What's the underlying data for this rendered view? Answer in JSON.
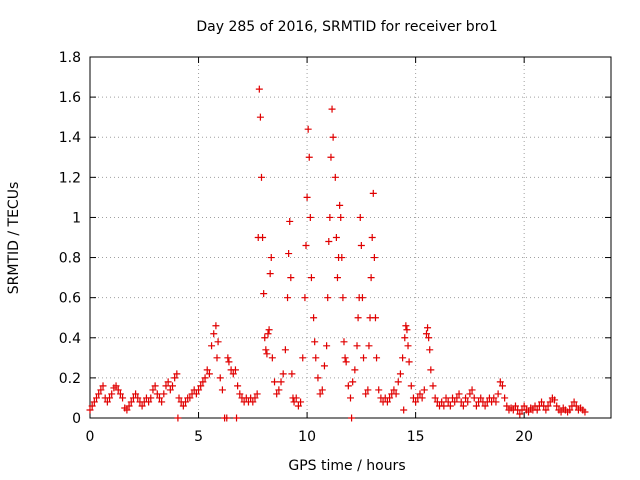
{
  "chart_data": {
    "type": "scatter",
    "title": "Day 285 of 2016, SRMTID for receiver bro1",
    "xlabel": "GPS time / hours",
    "ylabel": "SRMTID / TECUs",
    "xlim": [
      0,
      24
    ],
    "ylim": [
      0,
      1.8
    ],
    "xticks": [
      0,
      5,
      10,
      15,
      20
    ],
    "yticks": [
      0,
      0.2,
      0.4,
      0.6,
      0.8,
      1,
      1.2,
      1.4,
      1.6,
      1.8
    ],
    "xtick_labels": [
      "0",
      "5",
      "10",
      "15",
      "20"
    ],
    "ytick_labels": [
      "0",
      "0.2",
      "0.4",
      "0.6",
      "0.8",
      "1",
      "1.2",
      "1.4",
      "1.6",
      "1.8"
    ],
    "grid": true,
    "marker": "plus",
    "series_color": "#e00000",
    "points": [
      [
        0.0,
        0.04
      ],
      [
        0.1,
        0.06
      ],
      [
        0.2,
        0.08
      ],
      [
        0.3,
        0.1
      ],
      [
        0.4,
        0.12
      ],
      [
        0.5,
        0.14
      ],
      [
        0.6,
        0.16
      ],
      [
        0.7,
        0.1
      ],
      [
        0.8,
        0.08
      ],
      [
        0.9,
        0.1
      ],
      [
        1.0,
        0.12
      ],
      [
        1.1,
        0.15
      ],
      [
        1.2,
        0.16
      ],
      [
        1.3,
        0.14
      ],
      [
        1.4,
        0.12
      ],
      [
        1.5,
        0.1
      ],
      [
        1.6,
        0.05
      ],
      [
        1.7,
        0.04
      ],
      [
        1.8,
        0.06
      ],
      [
        1.9,
        0.08
      ],
      [
        2.0,
        0.1
      ],
      [
        2.1,
        0.12
      ],
      [
        2.2,
        0.1
      ],
      [
        2.3,
        0.08
      ],
      [
        2.4,
        0.06
      ],
      [
        2.5,
        0.08
      ],
      [
        2.6,
        0.1
      ],
      [
        2.7,
        0.08
      ],
      [
        2.8,
        0.1
      ],
      [
        2.9,
        0.14
      ],
      [
        3.0,
        0.16
      ],
      [
        3.1,
        0.12
      ],
      [
        3.2,
        0.1
      ],
      [
        3.3,
        0.08
      ],
      [
        3.4,
        0.12
      ],
      [
        3.5,
        0.16
      ],
      [
        3.6,
        0.18
      ],
      [
        3.7,
        0.14
      ],
      [
        3.8,
        0.16
      ],
      [
        3.9,
        0.2
      ],
      [
        4.0,
        0.22
      ],
      [
        4.05,
        0.0
      ],
      [
        4.1,
        0.1
      ],
      [
        4.2,
        0.08
      ],
      [
        4.3,
        0.06
      ],
      [
        4.4,
        0.08
      ],
      [
        4.5,
        0.1
      ],
      [
        4.6,
        0.1
      ],
      [
        4.7,
        0.12
      ],
      [
        4.8,
        0.14
      ],
      [
        4.9,
        0.12
      ],
      [
        5.0,
        0.14
      ],
      [
        5.1,
        0.16
      ],
      [
        5.2,
        0.18
      ],
      [
        5.3,
        0.2
      ],
      [
        5.4,
        0.24
      ],
      [
        5.5,
        0.22
      ],
      [
        5.6,
        0.36
      ],
      [
        5.7,
        0.42
      ],
      [
        5.8,
        0.46
      ],
      [
        5.85,
        0.3
      ],
      [
        5.9,
        0.38
      ],
      [
        6.0,
        0.2
      ],
      [
        6.1,
        0.14
      ],
      [
        6.2,
        0.0
      ],
      [
        6.3,
        0.0
      ],
      [
        6.35,
        0.3
      ],
      [
        6.4,
        0.28
      ],
      [
        6.5,
        0.24
      ],
      [
        6.6,
        0.22
      ],
      [
        6.7,
        0.24
      ],
      [
        6.75,
        0.0
      ],
      [
        6.8,
        0.16
      ],
      [
        6.9,
        0.12
      ],
      [
        7.0,
        0.1
      ],
      [
        7.1,
        0.08
      ],
      [
        7.2,
        0.1
      ],
      [
        7.3,
        0.08
      ],
      [
        7.4,
        0.1
      ],
      [
        7.5,
        0.08
      ],
      [
        7.6,
        0.1
      ],
      [
        7.7,
        0.12
      ],
      [
        7.75,
        0.9
      ],
      [
        7.8,
        1.64
      ],
      [
        7.85,
        1.5
      ],
      [
        7.9,
        1.2
      ],
      [
        7.95,
        0.9
      ],
      [
        8.0,
        0.62
      ],
      [
        8.05,
        0.4
      ],
      [
        8.1,
        0.34
      ],
      [
        8.15,
        0.32
      ],
      [
        8.2,
        0.42
      ],
      [
        8.25,
        0.44
      ],
      [
        8.3,
        0.72
      ],
      [
        8.35,
        0.8
      ],
      [
        8.4,
        0.3
      ],
      [
        8.5,
        0.18
      ],
      [
        8.6,
        0.12
      ],
      [
        8.7,
        0.14
      ],
      [
        8.8,
        0.18
      ],
      [
        8.9,
        0.22
      ],
      [
        9.0,
        0.34
      ],
      [
        9.1,
        0.6
      ],
      [
        9.15,
        0.82
      ],
      [
        9.2,
        0.98
      ],
      [
        9.25,
        0.7
      ],
      [
        9.3,
        0.22
      ],
      [
        9.35,
        0.1
      ],
      [
        9.4,
        0.08
      ],
      [
        9.5,
        0.1
      ],
      [
        9.6,
        0.06
      ],
      [
        9.7,
        0.08
      ],
      [
        9.8,
        0.3
      ],
      [
        9.9,
        0.6
      ],
      [
        9.95,
        0.86
      ],
      [
        10.0,
        1.1
      ],
      [
        10.05,
        1.44
      ],
      [
        10.1,
        1.3
      ],
      [
        10.15,
        1.0
      ],
      [
        10.2,
        0.7
      ],
      [
        10.3,
        0.5
      ],
      [
        10.35,
        0.38
      ],
      [
        10.4,
        0.3
      ],
      [
        10.5,
        0.2
      ],
      [
        10.6,
        0.12
      ],
      [
        10.7,
        0.14
      ],
      [
        10.8,
        0.26
      ],
      [
        10.9,
        0.36
      ],
      [
        10.95,
        0.6
      ],
      [
        11.0,
        0.88
      ],
      [
        11.05,
        1.0
      ],
      [
        11.1,
        1.3
      ],
      [
        11.15,
        1.54
      ],
      [
        11.2,
        1.4
      ],
      [
        11.3,
        1.2
      ],
      [
        11.35,
        0.9
      ],
      [
        11.4,
        0.7
      ],
      [
        11.45,
        0.8
      ],
      [
        11.5,
        1.06
      ],
      [
        11.55,
        1.0
      ],
      [
        11.6,
        0.8
      ],
      [
        11.65,
        0.6
      ],
      [
        11.7,
        0.38
      ],
      [
        11.75,
        0.3
      ],
      [
        11.8,
        0.28
      ],
      [
        11.9,
        0.16
      ],
      [
        12.0,
        0.1
      ],
      [
        12.05,
        0.0
      ],
      [
        12.1,
        0.18
      ],
      [
        12.2,
        0.24
      ],
      [
        12.3,
        0.36
      ],
      [
        12.35,
        0.5
      ],
      [
        12.4,
        0.6
      ],
      [
        12.45,
        1.0
      ],
      [
        12.5,
        0.86
      ],
      [
        12.55,
        0.6
      ],
      [
        12.6,
        0.3
      ],
      [
        12.7,
        0.12
      ],
      [
        12.8,
        0.14
      ],
      [
        12.85,
        0.36
      ],
      [
        12.9,
        0.5
      ],
      [
        12.95,
        0.7
      ],
      [
        13.0,
        0.9
      ],
      [
        13.05,
        1.12
      ],
      [
        13.1,
        0.8
      ],
      [
        13.15,
        0.5
      ],
      [
        13.2,
        0.3
      ],
      [
        13.3,
        0.14
      ],
      [
        13.4,
        0.1
      ],
      [
        13.5,
        0.08
      ],
      [
        13.6,
        0.1
      ],
      [
        13.7,
        0.08
      ],
      [
        13.8,
        0.1
      ],
      [
        13.9,
        0.12
      ],
      [
        14.0,
        0.14
      ],
      [
        14.1,
        0.12
      ],
      [
        14.2,
        0.18
      ],
      [
        14.3,
        0.22
      ],
      [
        14.4,
        0.3
      ],
      [
        14.45,
        0.04
      ],
      [
        14.5,
        0.4
      ],
      [
        14.55,
        0.46
      ],
      [
        14.6,
        0.44
      ],
      [
        14.65,
        0.36
      ],
      [
        14.7,
        0.28
      ],
      [
        14.8,
        0.16
      ],
      [
        14.9,
        0.1
      ],
      [
        15.0,
        0.08
      ],
      [
        15.1,
        0.1
      ],
      [
        15.2,
        0.12
      ],
      [
        15.3,
        0.1
      ],
      [
        15.4,
        0.14
      ],
      [
        15.5,
        0.42
      ],
      [
        15.55,
        0.45
      ],
      [
        15.6,
        0.4
      ],
      [
        15.65,
        0.34
      ],
      [
        15.7,
        0.24
      ],
      [
        15.8,
        0.16
      ],
      [
        15.9,
        0.1
      ],
      [
        16.0,
        0.08
      ],
      [
        16.1,
        0.06
      ],
      [
        16.2,
        0.08
      ],
      [
        16.3,
        0.06
      ],
      [
        16.4,
        0.1
      ],
      [
        16.5,
        0.08
      ],
      [
        16.6,
        0.06
      ],
      [
        16.7,
        0.1
      ],
      [
        16.8,
        0.08
      ],
      [
        16.9,
        0.1
      ],
      [
        17.0,
        0.12
      ],
      [
        17.1,
        0.08
      ],
      [
        17.2,
        0.06
      ],
      [
        17.3,
        0.1
      ],
      [
        17.4,
        0.08
      ],
      [
        17.5,
        0.12
      ],
      [
        17.6,
        0.14
      ],
      [
        17.7,
        0.1
      ],
      [
        17.8,
        0.06
      ],
      [
        17.9,
        0.08
      ],
      [
        18.0,
        0.1
      ],
      [
        18.1,
        0.08
      ],
      [
        18.2,
        0.06
      ],
      [
        18.3,
        0.08
      ],
      [
        18.4,
        0.1
      ],
      [
        18.5,
        0.08
      ],
      [
        18.6,
        0.1
      ],
      [
        18.7,
        0.08
      ],
      [
        18.8,
        0.12
      ],
      [
        18.9,
        0.18
      ],
      [
        19.0,
        0.16
      ],
      [
        19.1,
        0.1
      ],
      [
        19.2,
        0.06
      ],
      [
        19.3,
        0.04
      ],
      [
        19.4,
        0.05
      ],
      [
        19.5,
        0.04
      ],
      [
        19.6,
        0.06
      ],
      [
        19.7,
        0.04
      ],
      [
        19.8,
        0.02
      ],
      [
        19.9,
        0.04
      ],
      [
        20.0,
        0.06
      ],
      [
        20.1,
        0.04
      ],
      [
        20.2,
        0.03
      ],
      [
        20.3,
        0.05
      ],
      [
        20.4,
        0.04
      ],
      [
        20.5,
        0.06
      ],
      [
        20.6,
        0.04
      ],
      [
        20.7,
        0.06
      ],
      [
        20.8,
        0.08
      ],
      [
        20.9,
        0.06
      ],
      [
        21.0,
        0.04
      ],
      [
        21.1,
        0.06
      ],
      [
        21.2,
        0.08
      ],
      [
        21.3,
        0.1
      ],
      [
        21.4,
        0.09
      ],
      [
        21.5,
        0.06
      ],
      [
        21.6,
        0.04
      ],
      [
        21.7,
        0.03
      ],
      [
        21.8,
        0.05
      ],
      [
        21.9,
        0.04
      ],
      [
        22.0,
        0.03
      ],
      [
        22.1,
        0.04
      ],
      [
        22.2,
        0.06
      ],
      [
        22.3,
        0.08
      ],
      [
        22.4,
        0.06
      ],
      [
        22.5,
        0.04
      ],
      [
        22.6,
        0.05
      ],
      [
        22.7,
        0.04
      ],
      [
        22.8,
        0.03
      ]
    ]
  }
}
